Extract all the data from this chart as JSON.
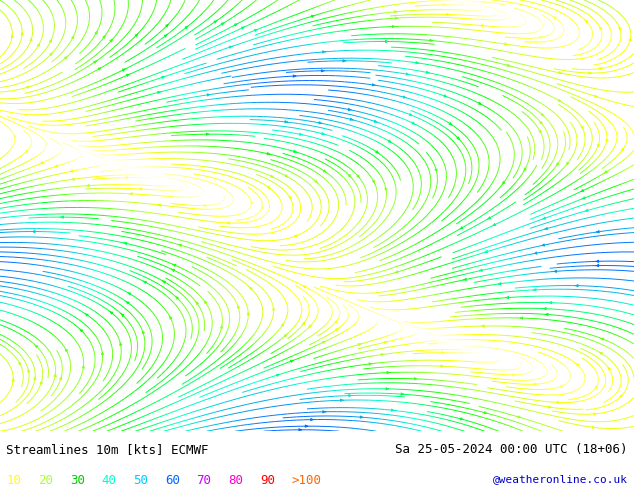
{
  "title_left": "Streamlines 10m [kts] ECMWF",
  "title_right": "Sa 25-05-2024 00:00 UTC (18+06)",
  "credit": "@weatheronline.co.uk",
  "legend_values": [
    "10",
    "20",
    "30",
    "40",
    "50",
    "60",
    "70",
    "80",
    "90",
    ">100"
  ],
  "legend_colors": [
    "#ffff00",
    "#adff2f",
    "#00cc00",
    "#00ffcc",
    "#00ccff",
    "#0066ff",
    "#cc00ff",
    "#ff00cc",
    "#ff0000",
    "#ff6600"
  ],
  "background_color": "#ffffff",
  "ocean_color": "#f0f0f0",
  "land_color": "#ccffcc",
  "figsize": [
    6.34,
    4.9
  ],
  "dpi": 100,
  "font_color": "#000000",
  "title_fontsize": 9,
  "legend_fontsize": 9,
  "credit_color": "#0000cc",
  "credit_fontsize": 8,
  "extent": [
    -110,
    -20,
    -60,
    15
  ]
}
